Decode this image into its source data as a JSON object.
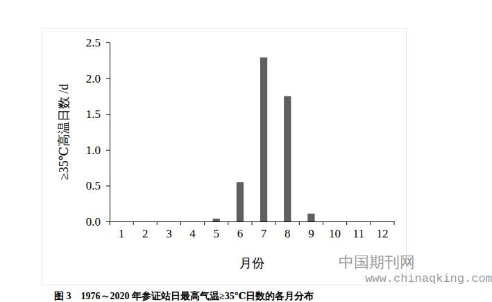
{
  "chart_data": {
    "type": "bar",
    "title": "图 3　1976～2020 年参证站日最高气温≥35℃日数的各月分布",
    "x_label": "月份",
    "y_label": "≥35℃高温日数 /d",
    "categories": [
      "1",
      "2",
      "3",
      "4",
      "5",
      "6",
      "7",
      "8",
      "9",
      "10",
      "11",
      "12"
    ],
    "values": [
      0,
      0,
      0,
      0,
      0.04,
      0.55,
      2.29,
      1.75,
      0.11,
      0,
      0,
      0
    ],
    "color": "#5f5f5f",
    "ylim": [
      0,
      2.5
    ],
    "yticks": [
      {
        "value": 0,
        "label": "0.0"
      },
      0.5,
      {
        "value": 1,
        "label": "1.0"
      },
      1.5,
      {
        "value": 2,
        "label": "2.0"
      },
      2.5
    ],
    "grid": false,
    "annotations": [
      "中国期刊网",
      "www.chinaqking.com"
    ]
  }
}
